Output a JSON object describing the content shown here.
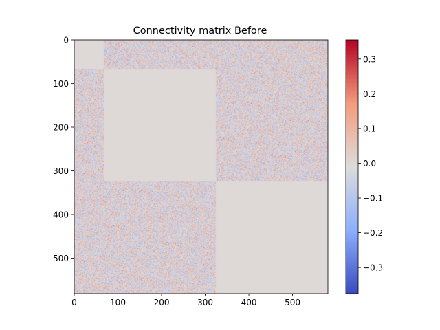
{
  "chart_data": {
    "type": "heatmap",
    "title": "Connectivity matrix Before",
    "xlabel": "",
    "ylabel": "",
    "n": 581,
    "xlim": [
      0,
      581
    ],
    "ylim": [
      581,
      0
    ],
    "x_ticks": [
      0,
      100,
      200,
      300,
      400,
      500
    ],
    "y_ticks": [
      0,
      100,
      200,
      300,
      400,
      500
    ],
    "x_tick_labels": [
      "0",
      "100",
      "200",
      "300",
      "400",
      "500"
    ],
    "y_tick_labels": [
      "0",
      "100",
      "200",
      "300",
      "400",
      "500"
    ],
    "colormap": "coolwarm",
    "vmin": -0.375,
    "vmax": 0.355,
    "colorbar_ticks": [
      0.3,
      0.2,
      0.1,
      0.0,
      -0.1,
      -0.2,
      -0.3
    ],
    "colorbar_tick_labels": [
      "0.3",
      "0.2",
      "0.1",
      "0.0",
      "−0.1",
      "−0.2",
      "−0.3"
    ],
    "groups": [
      {
        "start": 0,
        "end": 67
      },
      {
        "start": 67,
        "end": 325
      },
      {
        "start": 325,
        "end": 581
      }
    ],
    "block_pattern": "zero within groups, random noise between different groups",
    "off_block_value_range": [
      -0.375,
      0.355
    ],
    "diagonal_block_value": 0.0,
    "grid": false,
    "colors": {
      "zero": "#dddcdc",
      "low": "#3b4cc0",
      "high": "#b40426"
    }
  }
}
